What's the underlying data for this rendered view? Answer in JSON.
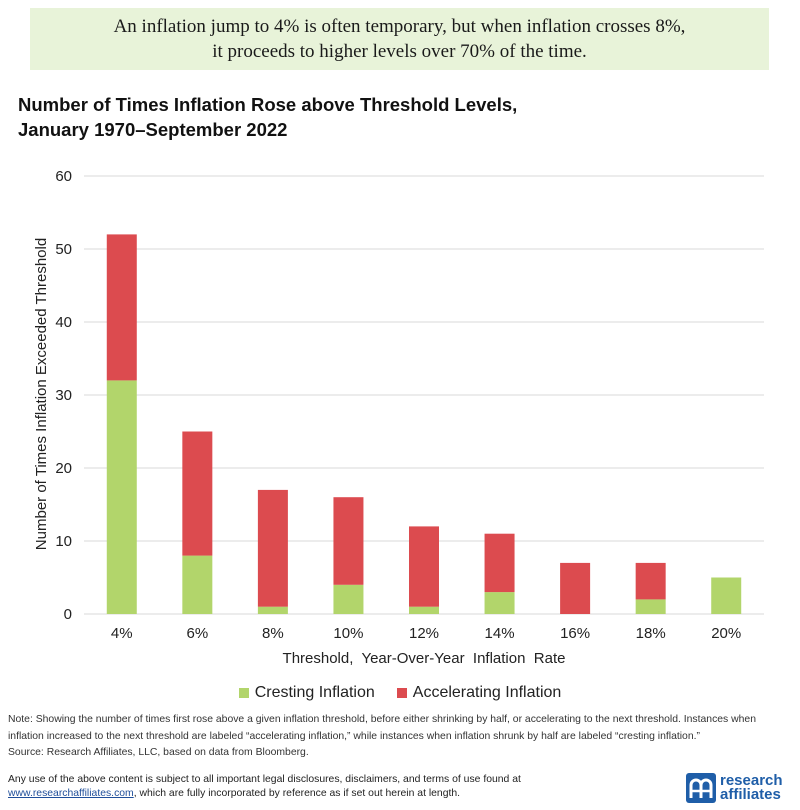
{
  "banner": {
    "line1": "An inflation jump to 4% is often temporary, but when inflation crosses 8%,",
    "line2": "it proceeds to higher levels over 70% of the time."
  },
  "title": {
    "line1": "Number of Times Inflation Rose above Threshold Levels,",
    "line2": "January 1970–September 2022"
  },
  "chart_data": {
    "type": "bar",
    "stacked": true,
    "categories": [
      "4%",
      "6%",
      "8%",
      "10%",
      "12%",
      "14%",
      "16%",
      "18%",
      "20%"
    ],
    "series": [
      {
        "name": "Cresting Inflation",
        "values": [
          32,
          8,
          1,
          4,
          1,
          3,
          0,
          2,
          5
        ],
        "color": "#b2d56b"
      },
      {
        "name": "Accelerating Inflation",
        "values": [
          20,
          17,
          16,
          12,
          11,
          8,
          7,
          5,
          0
        ],
        "color": "#dc4b4f"
      }
    ],
    "xlabel": "Threshold,  Year-Over-Year  Inflation  Rate",
    "ylabel": "Number of Times Inflation  Exceeded Threshold",
    "ylim": [
      0,
      60
    ],
    "yticks": [
      0,
      10,
      20,
      30,
      40,
      50,
      60
    ],
    "grid": true,
    "legend_position": "bottom"
  },
  "legend": {
    "cresting": "Cresting Inflation",
    "accelerating": "Accelerating Inflation"
  },
  "note": {
    "text": "Note: Showing the number of times first rose above a given inflation threshold, before either shrinking by half, or accelerating to the next threshold. Instances when inflation increased to the next threshold are labeled “accelerating inflation,” while instances when inflation shrunk by half are labeled “cresting inflation.”",
    "source": "Source: Research Affiliates, LLC, based on data from Bloomberg."
  },
  "disclaimer": {
    "text1": "Any use of the above content is subject to all important legal disclosures, disclaimers, and terms of use found at",
    "link": "www.researchaffiliates.com",
    "text2": ", which are fully incorporated by reference as if set out herein at length."
  },
  "logo": {
    "line1": "research",
    "line2": "affiliates",
    "color": "#1f5ea8"
  }
}
